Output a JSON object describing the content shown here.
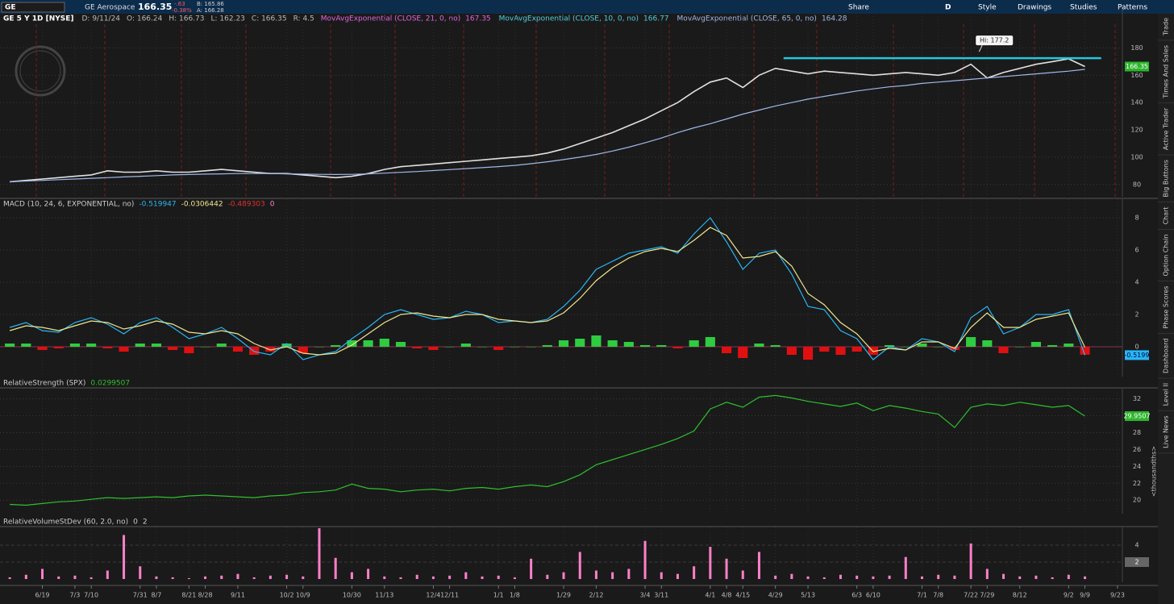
{
  "toolbar": {
    "symbol": "GE",
    "company": "GE Aerospace",
    "last": "166.35",
    "change": "-.63",
    "change_pct": "-0.38%",
    "bid": "B: 165.86",
    "ask": "A: 166.28",
    "period": "D",
    "buttons": [
      "Share",
      "Style",
      "Drawings",
      "Studies",
      "Patterns"
    ]
  },
  "side_tabs": [
    "Trade",
    "Times And Sales",
    "Active Trader",
    "Big Buttons",
    "Chart",
    "Option Chain",
    "Phase Scores",
    "Dashboard",
    "Level II",
    "Live News"
  ],
  "header": {
    "symbol_label": "GE 5 Y 1D [NYSE]",
    "items": [
      "D: 9/11/24",
      "O: 166.24",
      "H: 166.73",
      "L: 162.23",
      "C: 166.35",
      "R: 4.5"
    ],
    "studies": [
      {
        "label": "MovAvgExponential (CLOSE, 21, 0, no)",
        "value": "167.35",
        "color": "#e066e0"
      },
      {
        "label": "MovAvgExponential (CLOSE, 10, 0, no)",
        "value": "166.77",
        "color": "#4dd0e1"
      },
      {
        "label": "MovAvgExponential (CLOSE, 65, 0, no)",
        "value": "164.28",
        "color": "#9fb8e8"
      }
    ]
  },
  "chart_data": [
    {
      "type": "line",
      "x": [
        -2,
        -1,
        0,
        1,
        2,
        3,
        4,
        5,
        6,
        7,
        8,
        9,
        10,
        11,
        12,
        13,
        14,
        15,
        16,
        17,
        18,
        19,
        20,
        21,
        22,
        23,
        24,
        25,
        26,
        27,
        28,
        29,
        30,
        31,
        32,
        33,
        34,
        35,
        36,
        37,
        38,
        39,
        40,
        41,
        42,
        43,
        44,
        45,
        46,
        47,
        48,
        49,
        50,
        51,
        52,
        53,
        54,
        55,
        56,
        57,
        58,
        59,
        60,
        61,
        62,
        63,
        64
      ],
      "xlim": [
        -2.6,
        66.3
      ],
      "xticks": [
        {
          "value": 0,
          "label": "6/19"
        },
        {
          "value": 2,
          "label": "7/3"
        },
        {
          "value": 3,
          "label": "7/10"
        },
        {
          "value": 6,
          "label": "7/31"
        },
        {
          "value": 7,
          "label": "8/7"
        },
        {
          "value": 9,
          "label": "8/21"
        },
        {
          "value": 10,
          "label": "8/28"
        },
        {
          "value": 12,
          "label": "9/11"
        },
        {
          "value": 15,
          "label": "10/2"
        },
        {
          "value": 16,
          "label": "10/9"
        },
        {
          "value": 19,
          "label": "10/30"
        },
        {
          "value": 21,
          "label": "11/13"
        },
        {
          "value": 24,
          "label": "12/4"
        },
        {
          "value": 25,
          "label": "12/11"
        },
        {
          "value": 28,
          "label": "1/1"
        },
        {
          "value": 29,
          "label": "1/8"
        },
        {
          "value": 32,
          "label": "1/29"
        },
        {
          "value": 34,
          "label": "2/12"
        },
        {
          "value": 37,
          "label": "3/4"
        },
        {
          "value": 38,
          "label": "3/11"
        },
        {
          "value": 41,
          "label": "4/1"
        },
        {
          "value": 42,
          "label": "4/8"
        },
        {
          "value": 43,
          "label": "4/15"
        },
        {
          "value": 45,
          "label": "4/29"
        },
        {
          "value": 47,
          "label": "5/13"
        },
        {
          "value": 50,
          "label": "6/3"
        },
        {
          "value": 51,
          "label": "6/10"
        },
        {
          "value": 54,
          "label": "7/1"
        },
        {
          "value": 55,
          "label": "7/8"
        },
        {
          "value": 57,
          "label": "7/22"
        },
        {
          "value": 58,
          "label": "7/29"
        },
        {
          "value": 60,
          "label": "8/12"
        },
        {
          "value": 63,
          "label": "9/2"
        },
        {
          "value": 64,
          "label": "9/9"
        },
        {
          "value": 66,
          "label": "9/23"
        }
      ],
      "ylim": [
        71,
        208
      ],
      "yticks": [
        80,
        100,
        120,
        140,
        160,
        180
      ],
      "series": [
        {
          "color": "#e0e0e0",
          "values": [
            82,
            83,
            84,
            85,
            86,
            87,
            90,
            89,
            89,
            90,
            89,
            89,
            90,
            91,
            90,
            89,
            88,
            88,
            87,
            86,
            85,
            86,
            88,
            91,
            93,
            94,
            95,
            96,
            97,
            98,
            99,
            100,
            101,
            103,
            106,
            110,
            114,
            118,
            123,
            128,
            134,
            140,
            148,
            155,
            158,
            151,
            160,
            165,
            163,
            161,
            163,
            162,
            161,
            160,
            161,
            162,
            161,
            160,
            162,
            168,
            158,
            162,
            165,
            168,
            170,
            172,
            166.35
          ]
        },
        {
          "color": "#9fb8e8",
          "values": [
            82,
            82.5,
            83,
            83.5,
            84,
            84.5,
            85,
            85.5,
            86,
            86.5,
            87,
            87.3,
            87.6,
            87.8,
            88,
            88,
            88,
            87.8,
            87.6,
            87.4,
            87.3,
            87.4,
            87.8,
            88.3,
            88.9,
            89.5,
            90.2,
            90.9,
            91.6,
            92.3,
            93.1,
            94,
            95.2,
            96.6,
            98.2,
            100,
            102,
            104.5,
            107.3,
            110.5,
            114,
            118,
            121.5,
            124.5,
            128,
            131.5,
            134.5,
            137.5,
            140,
            142.5,
            144.5,
            146.5,
            148.5,
            150,
            151.5,
            152.5,
            154,
            155,
            156,
            157,
            158,
            159,
            160,
            161,
            162,
            163,
            164.28
          ]
        }
      ],
      "last_label": "166.35",
      "last_value": 166.35,
      "last_color": "#2db52d",
      "resistance": {
        "value": 172.5,
        "x": [
          45.5,
          65
        ],
        "color": "#26c6da"
      },
      "hi": {
        "label": "Hi: 177.2",
        "value": 177.2,
        "x": 57.5
      }
    },
    {
      "type": "line",
      "study": {
        "label": "MACD (10, 24, 6, EXPONENTIAL, no)",
        "values": [
          "-0.519947",
          "-0.0306442",
          "-0.489303",
          "0"
        ]
      },
      "ylim": [
        -1.85,
        9.15
      ],
      "yticks": [
        0,
        2,
        4,
        6,
        8
      ],
      "series": [
        {
          "color": "#29b6f6",
          "values": [
            1.2,
            1.5,
            1.0,
            0.9,
            1.5,
            1.8,
            1.4,
            0.8,
            1.5,
            1.8,
            1.2,
            0.5,
            0.8,
            1.2,
            0.5,
            -0.3,
            -0.5,
            0.2,
            -0.8,
            -0.5,
            -0.3,
            0.5,
            1.2,
            2.0,
            2.3,
            2.0,
            1.7,
            1.8,
            2.2,
            2.0,
            1.5,
            1.6,
            1.5,
            1.7,
            2.5,
            3.5,
            4.8,
            5.3,
            5.8,
            6.0,
            6.2,
            5.8,
            7.0,
            8.0,
            6.5,
            4.8,
            5.8,
            6.0,
            4.5,
            2.5,
            2.3,
            1.0,
            0.5,
            -0.8,
            0.0,
            -0.2,
            0.5,
            0.3,
            -0.3,
            1.8,
            2.5,
            0.8,
            1.2,
            2.0,
            2.0,
            2.3,
            -0.52
          ]
        },
        {
          "color": "#f0e68c",
          "values": [
            1.0,
            1.3,
            1.2,
            1.0,
            1.3,
            1.6,
            1.5,
            1.1,
            1.3,
            1.6,
            1.4,
            0.9,
            0.8,
            1.0,
            0.8,
            0.2,
            -0.2,
            0.0,
            -0.4,
            -0.5,
            -0.4,
            0.1,
            0.8,
            1.5,
            2.0,
            2.1,
            1.9,
            1.8,
            2.0,
            2.0,
            1.7,
            1.6,
            1.5,
            1.6,
            2.1,
            3.0,
            4.1,
            4.9,
            5.5,
            5.9,
            6.1,
            5.9,
            6.6,
            7.4,
            6.9,
            5.5,
            5.6,
            5.9,
            5.0,
            3.3,
            2.6,
            1.5,
            0.8,
            -0.3,
            -0.1,
            -0.2,
            0.3,
            0.3,
            -0.1,
            1.2,
            2.1,
            1.2,
            1.2,
            1.7,
            1.9,
            2.1,
            -0.03
          ]
        }
      ],
      "histogram": {
        "up_color": "#2ecc40",
        "down_color": "#e01010",
        "values": [
          0.2,
          0.2,
          -0.2,
          -0.1,
          0.2,
          0.2,
          -0.1,
          -0.3,
          0.2,
          0.2,
          -0.2,
          -0.4,
          0,
          0.2,
          -0.3,
          -0.5,
          -0.3,
          0.2,
          -0.4,
          0,
          0.1,
          0.4,
          0.4,
          0.5,
          0.3,
          -0.1,
          -0.2,
          0,
          0.2,
          0,
          -0.2,
          0,
          0,
          0.1,
          0.4,
          0.5,
          0.7,
          0.4,
          0.3,
          0.1,
          0.1,
          -0.1,
          0.4,
          0.6,
          -0.4,
          -0.7,
          0.2,
          0.1,
          -0.5,
          -0.8,
          -0.3,
          -0.5,
          -0.3,
          -0.5,
          0.1,
          0,
          0.2,
          0,
          -0.2,
          0.6,
          0.4,
          -0.4,
          0,
          0.3,
          0.1,
          0.2,
          -0.49
        ]
      },
      "last_label": "-0.5199",
      "last_value": -0.5199,
      "last_color": "#29b6f6"
    },
    {
      "type": "line",
      "study": {
        "label": "RelativeStrength (SPX)",
        "values": [
          "0.0299507"
        ]
      },
      "unit_label": "<thousandths>",
      "ylim": [
        18.4,
        33.2
      ],
      "yticks": [
        20,
        22,
        24,
        26,
        28,
        30,
        32
      ],
      "series": [
        {
          "color": "#2fbf2f",
          "values": [
            19.5,
            19.4,
            19.6,
            19.8,
            19.9,
            20.1,
            20.3,
            20.2,
            20.3,
            20.4,
            20.3,
            20.5,
            20.6,
            20.5,
            20.4,
            20.3,
            20.5,
            20.6,
            20.9,
            21.0,
            21.2,
            21.9,
            21.4,
            21.3,
            21.0,
            21.2,
            21.3,
            21.1,
            21.4,
            21.5,
            21.3,
            21.6,
            21.8,
            21.6,
            22.2,
            23.0,
            24.2,
            24.8,
            25.4,
            26.0,
            26.6,
            27.3,
            28.2,
            30.8,
            31.6,
            31.0,
            32.2,
            32.4,
            32.1,
            31.7,
            31.4,
            31.1,
            31.5,
            30.6,
            31.2,
            30.9,
            30.5,
            30.2,
            28.6,
            31.0,
            31.4,
            31.2,
            31.6,
            31.3,
            31.0,
            31.2,
            29.9507
          ]
        }
      ],
      "last_label": "29.9507",
      "last_value": 29.9507,
      "last_color": "#2db52d"
    },
    {
      "type": "bar",
      "study": {
        "label": "RelativeVolumeStDev (60, 2.0, no)",
        "values": [
          "0",
          "2"
        ]
      },
      "ylim": [
        -0.38,
        6.1
      ],
      "yticks": [
        2,
        4
      ],
      "color": "#ff80c8",
      "values": [
        0.2,
        0.5,
        1.2,
        0.3,
        0.4,
        0.2,
        1.0,
        5.2,
        1.5,
        0.3,
        0.2,
        0.1,
        0.3,
        0.4,
        0.6,
        0.2,
        0.4,
        0.5,
        0.3,
        6.0,
        2.5,
        0.8,
        1.2,
        0.3,
        0.2,
        0.5,
        0.3,
        0.4,
        0.8,
        0.3,
        0.4,
        0.2,
        2.4,
        0.5,
        0.8,
        3.2,
        1.0,
        0.8,
        1.2,
        4.5,
        0.8,
        0.6,
        1.5,
        3.8,
        2.4,
        1.0,
        3.2,
        0.4,
        0.6,
        0.3,
        0.2,
        0.5,
        0.4,
        0.3,
        0.4,
        2.6,
        0.3,
        0.5,
        0.4,
        4.2,
        1.2,
        0.6,
        0.3,
        0.4,
        0.2,
        0.5,
        0.3
      ],
      "last_label": "2",
      "last_value": 2,
      "last_color": "#666666"
    }
  ]
}
